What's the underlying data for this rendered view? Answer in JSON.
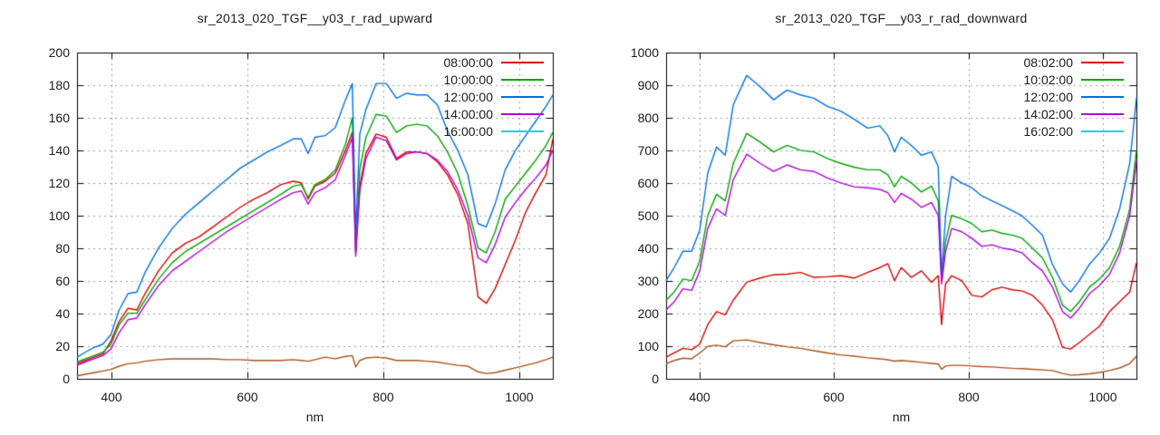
{
  "page": {
    "background": "#ffffff",
    "grid_color": "#9e9e9e",
    "axis_color": "#000000",
    "text_color": "#1c1c1c"
  },
  "chart_data": [
    {
      "type": "line",
      "title": "sr_2013_020_TGF__y03_r_rad_upward",
      "xlabel": "nm",
      "ylabel": "",
      "xlim": [
        350,
        1050
      ],
      "ylim": [
        0,
        200
      ],
      "x_ticks": [
        400,
        600,
        800,
        1000
      ],
      "y_ticks": [
        0,
        20,
        40,
        60,
        80,
        100,
        120,
        140,
        160,
        180,
        200
      ],
      "grid": true,
      "legend_position": "top-right",
      "x": [
        350,
        362,
        375,
        388,
        400,
        412,
        425,
        438,
        450,
        470,
        490,
        510,
        530,
        550,
        570,
        590,
        610,
        630,
        650,
        668,
        680,
        690,
        700,
        715,
        730,
        745,
        755,
        760,
        766,
        775,
        790,
        805,
        820,
        835,
        850,
        865,
        880,
        895,
        910,
        925,
        940,
        952,
        965,
        980,
        995,
        1010,
        1025,
        1040,
        1050
      ],
      "series": [
        {
          "name": "08:00:00",
          "color": "#dd0000",
          "swatch": "#dd0000",
          "values": [
            9,
            11,
            13,
            15,
            23,
            35,
            43,
            42,
            52,
            66,
            77,
            83,
            87,
            93,
            99,
            105,
            110,
            114,
            119,
            121,
            120,
            110,
            118,
            121,
            126,
            140,
            151,
            77,
            118,
            138,
            150,
            148,
            135,
            139,
            139,
            138,
            133,
            125,
            113,
            95,
            50,
            46,
            55,
            70,
            85,
            102,
            114,
            125,
            147
          ]
        },
        {
          "name": "10:00:00",
          "color": "#00a400",
          "swatch": "#00a400",
          "values": [
            10,
            12,
            14,
            16,
            21,
            33,
            40,
            40,
            48,
            61,
            71,
            78,
            83,
            88,
            93,
            98,
            103,
            108,
            113,
            118,
            119,
            111,
            119,
            122,
            128,
            144,
            160,
            80,
            128,
            148,
            162,
            161,
            151,
            155,
            156,
            155,
            149,
            139,
            126,
            106,
            80,
            77,
            90,
            110,
            118,
            126,
            134,
            143,
            151
          ]
        },
        {
          "name": "12:00:00",
          "color": "#0070e6",
          "swatch": "#0070e6",
          "values": [
            13,
            16,
            19,
            21,
            27,
            42,
            52,
            53,
            65,
            80,
            92,
            101,
            108,
            115,
            122,
            129,
            134,
            139,
            143,
            147,
            147,
            138,
            148,
            149,
            154,
            171,
            181,
            88,
            150,
            165,
            181,
            181,
            172,
            175,
            174,
            174,
            168,
            152,
            140,
            125,
            95,
            93,
            107,
            128,
            140,
            149,
            158,
            167,
            174
          ]
        },
        {
          "name": "14:00:00",
          "color": "#b200e0",
          "swatch": "#b200e0",
          "values": [
            8,
            10,
            12,
            14,
            18,
            28,
            36,
            37,
            45,
            57,
            66,
            72,
            78,
            84,
            90,
            95,
            100,
            105,
            110,
            114,
            115,
            107,
            114,
            117,
            122,
            137,
            148,
            75,
            115,
            135,
            148,
            146,
            134,
            138,
            139,
            138,
            134,
            127,
            116,
            100,
            74,
            71,
            82,
            99,
            108,
            116,
            123,
            131,
            140
          ]
        },
        {
          "name": "16:00:00",
          "color": "#a8521a",
          "swatch": "#00d2e6",
          "values": [
            1.5,
            2.5,
            3.5,
            4.5,
            5.5,
            7.5,
            9,
            9.5,
            10.5,
            11.5,
            12,
            12,
            12,
            12,
            11.5,
            11.5,
            11,
            11,
            11,
            11.5,
            11,
            10.5,
            11.5,
            13,
            12,
            13.5,
            14,
            7,
            11,
            12.5,
            13,
            12.5,
            11,
            11,
            11,
            10.5,
            10,
            9,
            8,
            7.5,
            4,
            3,
            3.5,
            5,
            6.5,
            8,
            9.5,
            11.5,
            13
          ]
        }
      ]
    },
    {
      "type": "line",
      "title": "sr_2013_020_TGF__y03_r_rad_downward",
      "xlabel": "nm",
      "ylabel": "",
      "xlim": [
        350,
        1050
      ],
      "ylim": [
        0,
        1000
      ],
      "x_ticks": [
        400,
        600,
        800,
        1000
      ],
      "y_ticks": [
        0,
        100,
        200,
        300,
        400,
        500,
        600,
        700,
        800,
        900,
        1000
      ],
      "grid": true,
      "legend_position": "top-right",
      "x": [
        350,
        362,
        375,
        388,
        400,
        412,
        425,
        438,
        450,
        470,
        490,
        510,
        530,
        550,
        570,
        590,
        610,
        630,
        650,
        668,
        680,
        690,
        700,
        715,
        730,
        745,
        755,
        760,
        766,
        775,
        790,
        805,
        820,
        835,
        850,
        865,
        880,
        895,
        910,
        925,
        940,
        952,
        965,
        980,
        995,
        1010,
        1025,
        1040,
        1050
      ],
      "series": [
        {
          "name": "08:02:00",
          "color": "#dd0000",
          "swatch": "#dd0000",
          "values": [
            65,
            78,
            92,
            88,
            105,
            165,
            205,
            195,
            240,
            295,
            308,
            318,
            320,
            325,
            310,
            312,
            315,
            308,
            325,
            340,
            352,
            300,
            340,
            310,
            330,
            295,
            315,
            165,
            290,
            315,
            300,
            255,
            250,
            272,
            280,
            272,
            268,
            255,
            225,
            180,
            95,
            90,
            110,
            135,
            160,
            205,
            235,
            265,
            355
          ]
        },
        {
          "name": "10:02:00",
          "color": "#00a400",
          "swatch": "#00a400",
          "values": [
            240,
            265,
            305,
            300,
            360,
            500,
            565,
            545,
            660,
            752,
            725,
            695,
            715,
            700,
            695,
            675,
            660,
            648,
            640,
            640,
            625,
            588,
            620,
            600,
            572,
            590,
            545,
            300,
            420,
            500,
            490,
            475,
            450,
            455,
            445,
            440,
            430,
            400,
            370,
            310,
            225,
            205,
            235,
            280,
            305,
            340,
            405,
            520,
            700
          ]
        },
        {
          "name": "12:02:00",
          "color": "#0070e6",
          "swatch": "#0070e6",
          "values": [
            300,
            340,
            390,
            390,
            455,
            630,
            710,
            685,
            840,
            930,
            895,
            855,
            885,
            870,
            860,
            835,
            820,
            795,
            768,
            775,
            745,
            695,
            740,
            715,
            685,
            695,
            650,
            315,
            500,
            620,
            600,
            585,
            560,
            545,
            530,
            515,
            498,
            470,
            440,
            350,
            290,
            265,
            300,
            350,
            385,
            430,
            520,
            660,
            860
          ]
        },
        {
          "name": "14:02:00",
          "color": "#b200e0",
          "swatch": "#b200e0",
          "values": [
            210,
            235,
            275,
            270,
            330,
            460,
            520,
            500,
            610,
            688,
            660,
            635,
            655,
            640,
            635,
            615,
            600,
            588,
            585,
            580,
            570,
            540,
            568,
            550,
            525,
            540,
            500,
            290,
            390,
            460,
            450,
            430,
            405,
            410,
            400,
            395,
            385,
            355,
            330,
            280,
            205,
            185,
            215,
            260,
            285,
            320,
            385,
            500,
            665
          ]
        },
        {
          "name": "16:02:00",
          "color": "#a8521a",
          "swatch": "#00d2e6",
          "values": [
            45,
            55,
            62,
            60,
            78,
            98,
            102,
            97,
            115,
            118,
            110,
            103,
            97,
            92,
            85,
            78,
            72,
            68,
            63,
            60,
            57,
            53,
            55,
            52,
            49,
            46,
            44,
            28,
            38,
            40,
            40,
            38,
            36,
            35,
            33,
            31,
            30,
            28,
            26,
            24,
            15,
            10,
            11,
            14,
            18,
            24,
            32,
            45,
            68
          ]
        }
      ]
    }
  ]
}
